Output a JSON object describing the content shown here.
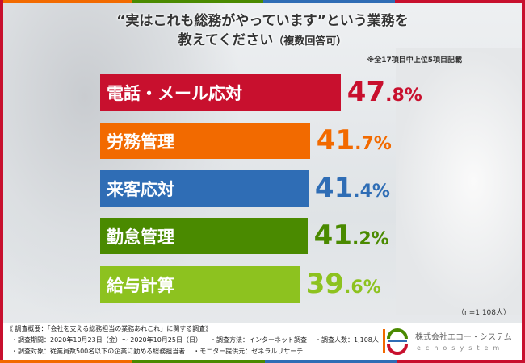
{
  "title": {
    "line1": "“実はこれも総務がやっています”という業務を",
    "line2": "教えてください",
    "line2_suffix": "（複数回答可）"
  },
  "note": "※全17項目中上位5項目記載",
  "sample_note": "（n=1,108人）",
  "chart_data": {
    "type": "bar",
    "orientation": "horizontal",
    "unit": "%",
    "categories": [
      "電話・メール応対",
      "労務管理",
      "来客応対",
      "勤怠管理",
      "給与計算"
    ],
    "values": [
      47.8,
      41.7,
      41.4,
      41.2,
      39.6
    ],
    "value_labels": [
      {
        "int": "47",
        "dec": ".8%"
      },
      {
        "int": "41",
        "dec": ".7%"
      },
      {
        "int": "41",
        "dec": ".4%"
      },
      {
        "int": "41",
        "dec": ".2%"
      },
      {
        "int": "39",
        "dec": ".6%"
      }
    ],
    "colors": [
      "#c8102e",
      "#f26a00",
      "#2f6db5",
      "#4a8a00",
      "#8dc21f"
    ]
  },
  "footer": {
    "overview": "《 調査概要：「会社を支える総務担当の業務あれこれ」に関する調査》",
    "period": "・調査期間：2020年10月23日（金）～ 2020年10月25日（日）",
    "method": "・調査方法：インターネット調査",
    "count": "・調査人数：1,108人",
    "target": "・調査対象：従業員数500名以下の企業に勤める総務担当者",
    "provider": "・モニター提供元：ゼネラルリサーチ",
    "company": "株式会社エコー・システム",
    "company_en": "echosystem"
  },
  "stripe_colors": [
    "#c8102e",
    "#f26a00",
    "#4a8a00",
    "#2f6db5"
  ]
}
